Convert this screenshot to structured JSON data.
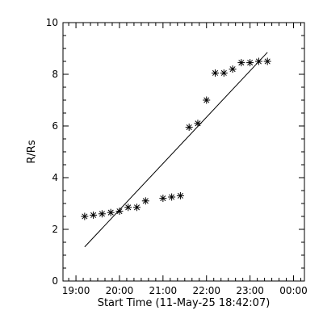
{
  "chart_data": {
    "type": "scatter",
    "xlabel": "Start Time (11-May-25 18:42:07)",
    "ylabel": "R/Rs",
    "x_unit": "time",
    "xlim": [
      "18:42:07",
      "00:15:00"
    ],
    "ylim": [
      0,
      10
    ],
    "x_ticks": [
      "19:00",
      "20:00",
      "21:00",
      "22:00",
      "23:00",
      "00:00"
    ],
    "y_ticks": [
      "0",
      "2",
      "4",
      "6",
      "8",
      "10"
    ],
    "grid": false,
    "series": [
      {
        "marker": "asterisk",
        "x": [
          "19:12",
          "19:24",
          "19:36",
          "19:48",
          "20:00",
          "20:12",
          "20:24",
          "20:36",
          "21:00",
          "21:12",
          "21:24",
          "21:36",
          "21:48",
          "22:00",
          "22:12",
          "22:24",
          "22:36",
          "22:48",
          "23:00",
          "23:12",
          "23:24"
        ],
        "y": [
          2.5,
          2.55,
          2.6,
          2.65,
          2.7,
          2.85,
          2.85,
          3.1,
          3.2,
          3.25,
          3.3,
          5.95,
          6.1,
          7.0,
          8.05,
          8.05,
          8.2,
          8.45,
          8.45,
          8.5,
          8.5
        ]
      }
    ],
    "fit_line": {
      "x": [
        "19:12",
        "23:24"
      ],
      "y": [
        1.32,
        8.85
      ]
    }
  }
}
